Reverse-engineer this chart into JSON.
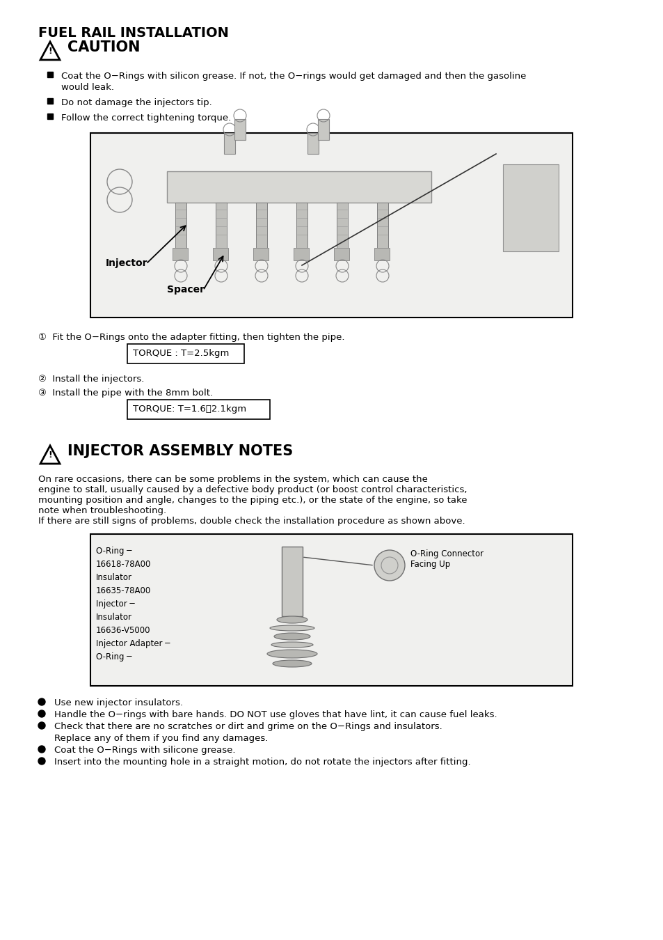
{
  "page_title": "FUEL RAIL INSTALLATION",
  "caution_title": "CAUTION",
  "caution_bullet1_line1": "Coat the O−Rings with silicon grease. If not, the O−rings would get damaged and then the gasoline",
  "caution_bullet1_line2": "would leak.",
  "caution_bullet2": "Do not damage the injectors tip.",
  "caution_bullet3": "Follow the correct tightening torque.",
  "step1_text": "①  Fit the O−Rings onto the adapter fitting, then tighten the pipe.",
  "torque1_text": "TORQUE : T=2.5kgm",
  "step2_text": "②  Install the injectors.",
  "step3_text": "③  Install the pipe with the 8mm bolt.",
  "torque2_text": "TORQUE: T=1.6～2.1kgm",
  "section2_title": "INJECTOR ASSEMBLY NOTES",
  "section2_line1": "On rare occasions, there can be some problems in the system, which can cause the",
  "section2_line2": "engine to stall, usually caused by a defective body product (or boost control characteristics,",
  "section2_line3": "mounting position and angle, changes to the piping etc.), or the state of the engine, so take",
  "section2_line4": "note when troubleshooting.",
  "section2_line5": "If there are still signs of problems, double check the installation procedure as shown above.",
  "diag2_label_oring1": "O-Ring ─",
  "diag2_label_16618": "16618-78A00",
  "diag2_label_insulator1": "Insulator",
  "diag2_label_16635": "16635-78A00",
  "diag2_label_injector": "Injector ─",
  "diag2_label_insulator2": "Insulator",
  "diag2_label_16636": "16636-V5000",
  "diag2_label_adapter": "Injector Adapter ─",
  "diag2_label_oring2": "O-Ring ─",
  "diag2_label_connector1": "O-Ring Connector",
  "diag2_label_connector2": "Facing Up",
  "bullet_b1": "Use new injector insulators.",
  "bullet_b2": "Handle the O−rings with bare hands. DO NOT use gloves that have lint, it can cause fuel leaks.",
  "bullet_b3_line1": "Check that there are no scratches or dirt and grime on the O−Rings and insulators.",
  "bullet_b3_line2": "Replace any of them if you find any damages.",
  "bullet_b4": "Coat the O−Rings with silicone grease.",
  "bullet_b5": "Insert into the mounting hole in a straight motion, do not rotate the injectors after fitting.",
  "bg_color": "#ffffff"
}
